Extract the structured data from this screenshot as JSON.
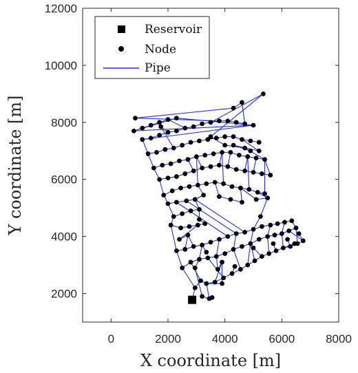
{
  "chart_data": {
    "type": "scatter",
    "title": "",
    "xlabel": "X coordinate [m]",
    "ylabel": "Y coordinate [m]",
    "xlim": [
      -1000,
      8000
    ],
    "ylim": [
      1000,
      12000
    ],
    "xticks": [
      0,
      2000,
      4000,
      6000,
      8000
    ],
    "yticks": [
      2000,
      4000,
      6000,
      8000,
      10000,
      12000
    ],
    "grid": false,
    "legend_position": "top-left",
    "legend": [
      {
        "label": "Reservoir",
        "marker": "square",
        "color": "#000000"
      },
      {
        "label": "Node",
        "marker": "circle",
        "color": "#000000"
      },
      {
        "label": "Pipe",
        "marker": "line",
        "color": "#1f2fd8"
      }
    ],
    "colors": {
      "pipe": "#1f2fd8",
      "node": "#000000",
      "reservoir": "#000000"
    },
    "reservoir": {
      "x": 2850,
      "y": 1780
    },
    "nodes": [
      [
        2850,
        1780
      ],
      [
        3450,
        1820
      ],
      [
        3550,
        1860
      ],
      [
        3200,
        1900
      ],
      [
        2950,
        2200
      ],
      [
        3150,
        2450
      ],
      [
        3350,
        2350
      ],
      [
        3650,
        2400
      ],
      [
        3950,
        2550
      ],
      [
        4250,
        2700
      ],
      [
        4550,
        2850
      ],
      [
        4800,
        3000
      ],
      [
        5050,
        3150
      ],
      [
        5300,
        3300
      ],
      [
        5550,
        3400
      ],
      [
        5800,
        3500
      ],
      [
        6050,
        3600
      ],
      [
        6300,
        3650
      ],
      [
        6550,
        3750
      ],
      [
        6750,
        3850
      ],
      [
        2500,
        2900
      ],
      [
        2800,
        3100
      ],
      [
        3100,
        3200
      ],
      [
        3400,
        3250
      ],
      [
        3700,
        3300
      ],
      [
        4000,
        3400
      ],
      [
        4300,
        3550
      ],
      [
        4600,
        3650
      ],
      [
        4900,
        3750
      ],
      [
        5200,
        3900
      ],
      [
        5500,
        4000
      ],
      [
        5750,
        4050
      ],
      [
        6000,
        4100
      ],
      [
        6250,
        4200
      ],
      [
        6500,
        4300
      ],
      [
        2300,
        3500
      ],
      [
        2600,
        3550
      ],
      [
        2900,
        3650
      ],
      [
        3200,
        3700
      ],
      [
        3500,
        3800
      ],
      [
        3800,
        3900
      ],
      [
        4100,
        4000
      ],
      [
        4400,
        4100
      ],
      [
        4700,
        4150
      ],
      [
        5000,
        4250
      ],
      [
        5300,
        4350
      ],
      [
        5600,
        4400
      ],
      [
        5850,
        4450
      ],
      [
        6100,
        4500
      ],
      [
        6350,
        4550
      ],
      [
        2100,
        4400
      ],
      [
        2450,
        4300
      ],
      [
        2750,
        4350
      ],
      [
        3050,
        4400
      ],
      [
        3300,
        4450
      ],
      [
        2200,
        4700
      ],
      [
        2500,
        4800
      ],
      [
        2800,
        4900
      ],
      [
        3100,
        4950
      ],
      [
        2000,
        5150
      ],
      [
        2300,
        5200
      ],
      [
        2650,
        5250
      ],
      [
        2950,
        5300
      ],
      [
        3250,
        5450
      ],
      [
        1850,
        5450
      ],
      [
        2150,
        5600
      ],
      [
        2450,
        5700
      ],
      [
        2750,
        5750
      ],
      [
        3050,
        5800
      ],
      [
        3350,
        5850
      ],
      [
        3650,
        5900
      ],
      [
        3950,
        5850
      ],
      [
        4250,
        5750
      ],
      [
        4550,
        5700
      ],
      [
        4850,
        5650
      ],
      [
        5150,
        5550
      ],
      [
        5400,
        5500
      ],
      [
        1700,
        6000
      ],
      [
        2000,
        6050
      ],
      [
        2300,
        6100
      ],
      [
        2600,
        6200
      ],
      [
        2900,
        6300
      ],
      [
        3200,
        6400
      ],
      [
        3500,
        6450
      ],
      [
        3800,
        6500
      ],
      [
        4100,
        6450
      ],
      [
        4400,
        6350
      ],
      [
        4700,
        6300
      ],
      [
        5000,
        6250
      ],
      [
        5300,
        6200
      ],
      [
        5600,
        6150
      ],
      [
        1500,
        6400
      ],
      [
        1800,
        6500
      ],
      [
        2100,
        6550
      ],
      [
        2400,
        6650
      ],
      [
        2700,
        6700
      ],
      [
        3000,
        6800
      ],
      [
        3300,
        6850
      ],
      [
        3600,
        6900
      ],
      [
        3900,
        6950
      ],
      [
        4200,
        6950
      ],
      [
        4500,
        6850
      ],
      [
        4800,
        6800
      ],
      [
        5100,
        6750
      ],
      [
        5400,
        6700
      ],
      [
        1300,
        6900
      ],
      [
        1600,
        6950
      ],
      [
        1900,
        7050
      ],
      [
        2200,
        7100
      ],
      [
        2500,
        7200
      ],
      [
        2800,
        7300
      ],
      [
        3100,
        7350
      ],
      [
        3400,
        7400
      ],
      [
        3700,
        7450
      ],
      [
        4000,
        7500
      ],
      [
        4300,
        7500
      ],
      [
        4600,
        7400
      ],
      [
        4900,
        7350
      ],
      [
        5200,
        7300
      ],
      [
        1100,
        7400
      ],
      [
        1400,
        7450
      ],
      [
        1700,
        7550
      ],
      [
        2000,
        7650
      ],
      [
        2300,
        7700
      ],
      [
        2600,
        7800
      ],
      [
        2900,
        7850
      ],
      [
        3200,
        7950
      ],
      [
        3500,
        8000
      ],
      [
        3800,
        8050
      ],
      [
        4100,
        8050
      ],
      [
        4400,
        8000
      ],
      [
        4700,
        7950
      ],
      [
        5000,
        7900
      ],
      [
        800,
        7700
      ],
      [
        1100,
        7800
      ],
      [
        1400,
        7900
      ],
      [
        1700,
        8000
      ],
      [
        2000,
        8100
      ],
      [
        2300,
        8150
      ],
      [
        850,
        8150
      ],
      [
        4300,
        8500
      ],
      [
        4600,
        8700
      ],
      [
        5350,
        9000
      ],
      [
        3500,
        7500
      ],
      [
        4000,
        7200
      ],
      [
        4700,
        7100
      ],
      [
        5200,
        7000
      ],
      [
        4300,
        7200
      ],
      [
        4900,
        7000
      ],
      [
        1750,
        7850
      ],
      [
        3100,
        4600
      ],
      [
        2700,
        4050
      ],
      [
        2400,
        3900
      ],
      [
        3350,
        3450
      ],
      [
        3900,
        3100
      ],
      [
        4350,
        2950
      ],
      [
        5000,
        3600
      ],
      [
        5700,
        3750
      ],
      [
        6200,
        3900
      ],
      [
        6600,
        4100
      ],
      [
        4600,
        5200
      ],
      [
        4200,
        5300
      ],
      [
        3800,
        5400
      ],
      [
        5100,
        5300
      ],
      [
        5500,
        5350
      ],
      [
        2950,
        2900
      ],
      [
        3900,
        2350
      ],
      [
        3750,
        2850
      ],
      [
        5250,
        4700
      ],
      [
        6450,
        3750
      ]
    ],
    "pipes": [
      [
        0,
        4
      ],
      [
        4,
        5
      ],
      [
        5,
        6
      ],
      [
        6,
        1
      ],
      [
        1,
        2
      ],
      [
        6,
        7
      ],
      [
        7,
        8
      ],
      [
        8,
        9
      ],
      [
        9,
        10
      ],
      [
        10,
        11
      ],
      [
        11,
        12
      ],
      [
        12,
        13
      ],
      [
        13,
        14
      ],
      [
        14,
        15
      ],
      [
        15,
        16
      ],
      [
        16,
        17
      ],
      [
        17,
        18
      ],
      [
        18,
        19
      ],
      [
        4,
        20
      ],
      [
        20,
        21
      ],
      [
        21,
        22
      ],
      [
        22,
        23
      ],
      [
        23,
        24
      ],
      [
        24,
        25
      ],
      [
        25,
        26
      ],
      [
        26,
        27
      ],
      [
        27,
        28
      ],
      [
        28,
        29
      ],
      [
        29,
        30
      ],
      [
        30,
        31
      ],
      [
        31,
        32
      ],
      [
        32,
        33
      ],
      [
        33,
        34
      ],
      [
        20,
        35
      ],
      [
        35,
        36
      ],
      [
        36,
        37
      ],
      [
        37,
        38
      ],
      [
        38,
        39
      ],
      [
        39,
        40
      ],
      [
        40,
        41
      ],
      [
        41,
        42
      ],
      [
        42,
        43
      ],
      [
        43,
        44
      ],
      [
        44,
        45
      ],
      [
        45,
        46
      ],
      [
        46,
        47
      ],
      [
        47,
        48
      ],
      [
        48,
        49
      ],
      [
        35,
        50
      ],
      [
        50,
        51
      ],
      [
        51,
        52
      ],
      [
        52,
        53
      ],
      [
        53,
        54
      ],
      [
        50,
        55
      ],
      [
        55,
        56
      ],
      [
        56,
        57
      ],
      [
        57,
        58
      ],
      [
        55,
        59
      ],
      [
        59,
        60
      ],
      [
        60,
        61
      ],
      [
        61,
        62
      ],
      [
        62,
        63
      ],
      [
        59,
        64
      ],
      [
        64,
        65
      ],
      [
        65,
        66
      ],
      [
        66,
        67
      ],
      [
        67,
        68
      ],
      [
        68,
        69
      ],
      [
        69,
        70
      ],
      [
        70,
        71
      ],
      [
        71,
        72
      ],
      [
        72,
        73
      ],
      [
        73,
        74
      ],
      [
        74,
        75
      ],
      [
        75,
        76
      ],
      [
        64,
        77
      ],
      [
        77,
        78
      ],
      [
        78,
        79
      ],
      [
        79,
        80
      ],
      [
        80,
        81
      ],
      [
        81,
        82
      ],
      [
        82,
        83
      ],
      [
        83,
        84
      ],
      [
        84,
        85
      ],
      [
        85,
        86
      ],
      [
        86,
        87
      ],
      [
        87,
        88
      ],
      [
        88,
        89
      ],
      [
        89,
        90
      ],
      [
        77,
        91
      ],
      [
        91,
        92
      ],
      [
        92,
        93
      ],
      [
        93,
        94
      ],
      [
        94,
        95
      ],
      [
        95,
        96
      ],
      [
        96,
        97
      ],
      [
        97,
        98
      ],
      [
        98,
        99
      ],
      [
        99,
        100
      ],
      [
        100,
        101
      ],
      [
        101,
        102
      ],
      [
        102,
        103
      ],
      [
        103,
        104
      ],
      [
        91,
        105
      ],
      [
        105,
        106
      ],
      [
        106,
        107
      ],
      [
        107,
        108
      ],
      [
        108,
        109
      ],
      [
        109,
        110
      ],
      [
        110,
        111
      ],
      [
        111,
        112
      ],
      [
        112,
        113
      ],
      [
        113,
        114
      ],
      [
        114,
        115
      ],
      [
        115,
        116
      ],
      [
        116,
        117
      ],
      [
        117,
        118
      ],
      [
        105,
        119
      ],
      [
        119,
        120
      ],
      [
        120,
        121
      ],
      [
        121,
        122
      ],
      [
        122,
        123
      ],
      [
        123,
        124
      ],
      [
        124,
        125
      ],
      [
        125,
        126
      ],
      [
        126,
        127
      ],
      [
        127,
        128
      ],
      [
        128,
        129
      ],
      [
        129,
        130
      ],
      [
        130,
        131
      ],
      [
        119,
        132
      ],
      [
        132,
        133
      ],
      [
        133,
        134
      ],
      [
        134,
        135
      ],
      [
        135,
        136
      ],
      [
        136,
        137
      ],
      [
        132,
        138
      ],
      [
        138,
        133
      ],
      [
        137,
        124
      ],
      [
        128,
        139
      ],
      [
        139,
        140
      ],
      [
        140,
        141
      ],
      [
        141,
        131
      ],
      [
        127,
        142
      ],
      [
        142,
        143
      ],
      [
        143,
        144
      ],
      [
        144,
        145
      ],
      [
        116,
        146
      ],
      [
        146,
        147
      ],
      [
        147,
        148
      ],
      [
        148,
        145
      ],
      [
        145,
        104
      ],
      [
        122,
        149
      ],
      [
        149,
        108
      ],
      [
        5,
        21
      ],
      [
        8,
        23
      ],
      [
        10,
        26
      ],
      [
        12,
        28
      ],
      [
        14,
        30
      ],
      [
        16,
        32
      ],
      [
        18,
        34
      ],
      [
        19,
        33
      ],
      [
        22,
        38
      ],
      [
        24,
        40
      ],
      [
        26,
        42
      ],
      [
        28,
        44
      ],
      [
        30,
        46
      ],
      [
        32,
        48
      ],
      [
        34,
        49
      ],
      [
        36,
        151
      ],
      [
        151,
        152
      ],
      [
        152,
        53
      ],
      [
        37,
        151
      ],
      [
        38,
        153
      ],
      [
        7,
        154
      ],
      [
        9,
        155
      ],
      [
        11,
        28
      ],
      [
        13,
        156
      ],
      [
        15,
        157
      ],
      [
        17,
        158
      ],
      [
        19,
        159
      ],
      [
        54,
        150
      ],
      [
        150,
        58
      ],
      [
        58,
        62
      ],
      [
        62,
        63
      ],
      [
        63,
        68
      ],
      [
        70,
        162
      ],
      [
        162,
        161
      ],
      [
        161,
        160
      ],
      [
        160,
        73
      ],
      [
        73,
        163
      ],
      [
        163,
        164
      ],
      [
        164,
        75
      ],
      [
        44,
        168
      ],
      [
        168,
        164
      ],
      [
        68,
        96
      ],
      [
        71,
        99
      ],
      [
        74,
        102
      ],
      [
        76,
        104
      ],
      [
        82,
        96
      ],
      [
        85,
        100
      ],
      [
        88,
        103
      ],
      [
        90,
        104
      ],
      [
        81,
        95
      ],
      [
        84,
        99
      ],
      [
        87,
        102
      ],
      [
        3,
        165
      ],
      [
        165,
        22
      ],
      [
        3,
        1
      ],
      [
        6,
        166
      ],
      [
        166,
        154
      ],
      [
        154,
        167
      ],
      [
        167,
        24
      ],
      [
        18,
        169
      ],
      [
        169,
        16
      ],
      [
        41,
        60
      ],
      [
        42,
        61
      ],
      [
        43,
        62
      ]
    ]
  }
}
